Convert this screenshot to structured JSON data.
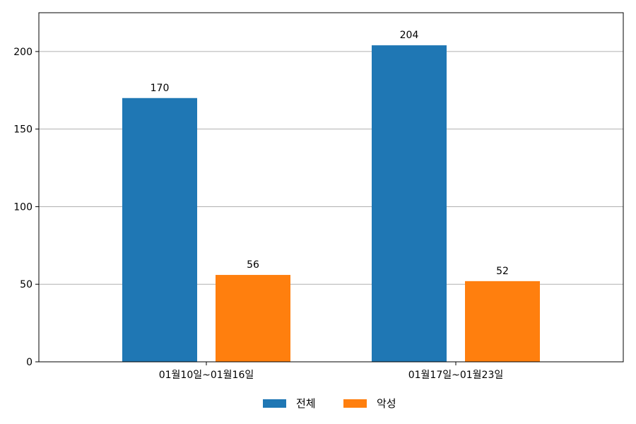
{
  "chart_data": {
    "type": "bar",
    "categories": [
      "01월10일~01월16일",
      "01월17일~01월23일"
    ],
    "series": [
      {
        "name": "전체",
        "values": [
          170,
          204
        ],
        "color": "#1f77b4"
      },
      {
        "name": "악성",
        "values": [
          56,
          52
        ],
        "color": "#ff7f0e"
      }
    ],
    "title": "",
    "xlabel": "",
    "ylabel": "",
    "ylim": [
      0,
      225
    ],
    "yticks": [
      0,
      50,
      100,
      150,
      200
    ],
    "grid": "horizontal",
    "legend_position": "bottom-center",
    "data_labels": true
  }
}
